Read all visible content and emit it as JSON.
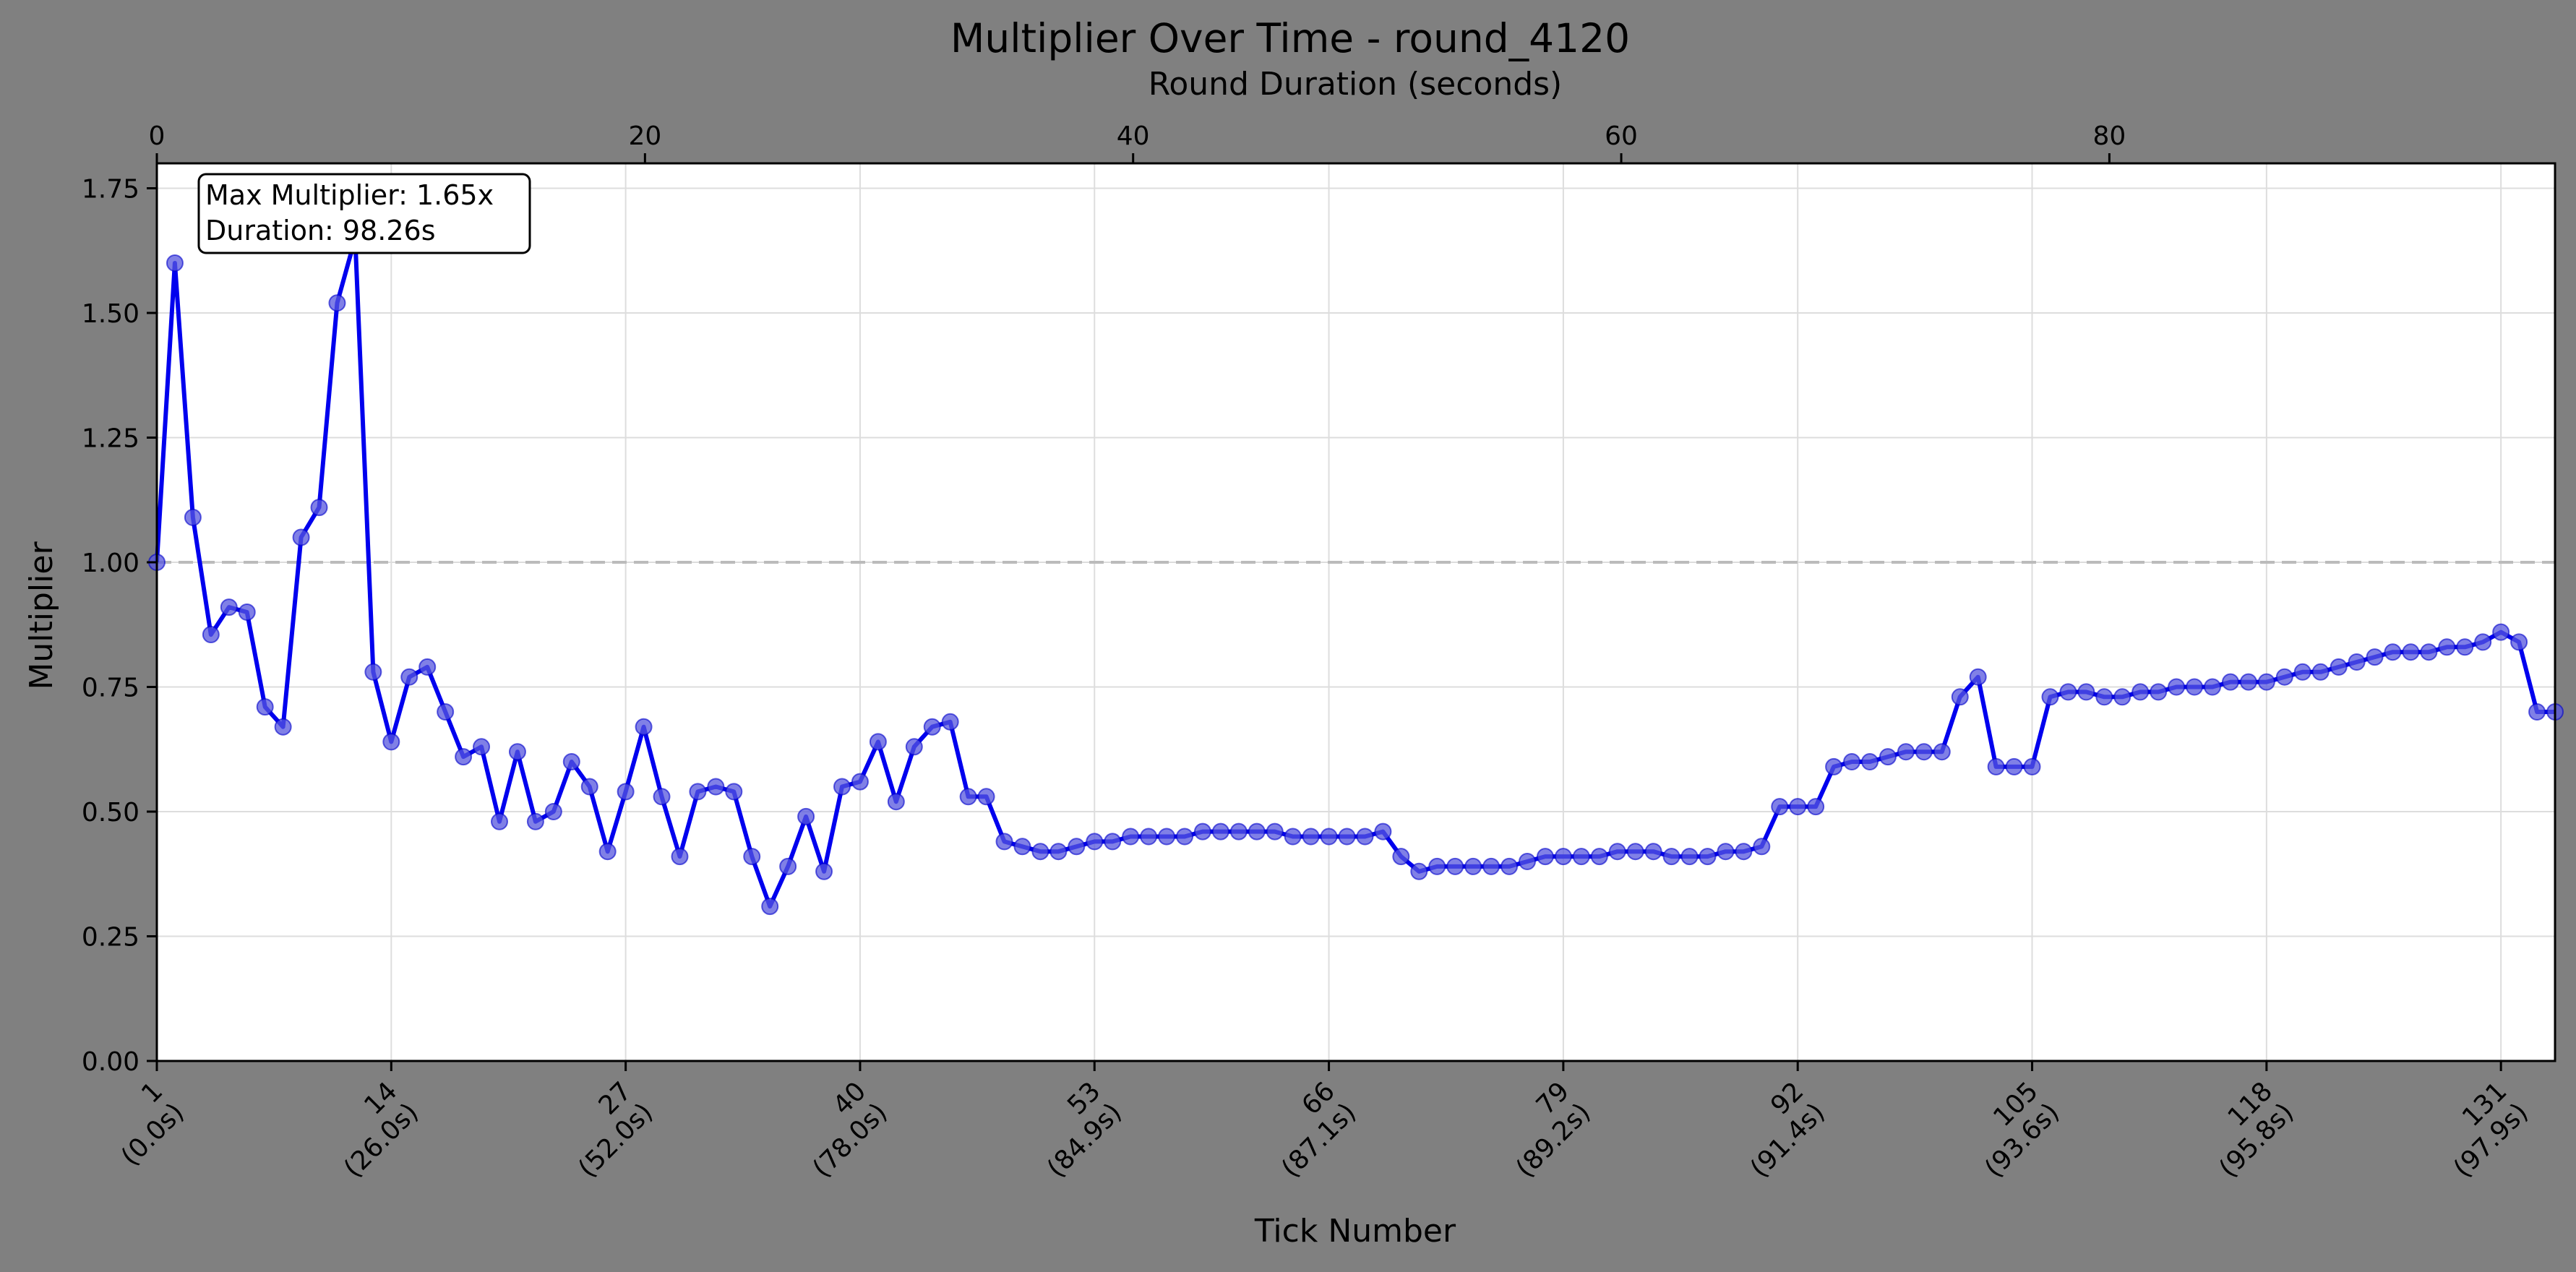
{
  "chart_data": {
    "type": "line",
    "title": "Multiplier Over Time - round_4120",
    "xlabel": "Tick Number",
    "ylabel": "Multiplier",
    "x2label": "Round Duration (seconds)",
    "xlim": [
      1,
      134
    ],
    "ylim": [
      0,
      1.8
    ],
    "x2lim": [
      0,
      98.26
    ],
    "grid": true,
    "x_ticks": [
      {
        "tick": 1,
        "label": "1",
        "sub": "(0.0s)"
      },
      {
        "tick": 14,
        "label": "14",
        "sub": "(26.0s)"
      },
      {
        "tick": 27,
        "label": "27",
        "sub": "(52.0s)"
      },
      {
        "tick": 40,
        "label": "40",
        "sub": "(78.0s)"
      },
      {
        "tick": 53,
        "label": "53",
        "sub": "(84.9s)"
      },
      {
        "tick": 66,
        "label": "66",
        "sub": "(87.1s)"
      },
      {
        "tick": 79,
        "label": "79",
        "sub": "(89.2s)"
      },
      {
        "tick": 92,
        "label": "92",
        "sub": "(91.4s)"
      },
      {
        "tick": 105,
        "label": "105",
        "sub": "(93.6s)"
      },
      {
        "tick": 118,
        "label": "118",
        "sub": "(95.8s)"
      },
      {
        "tick": 131,
        "label": "131",
        "sub": "(97.9s)"
      }
    ],
    "x2_ticks": [
      "0",
      "20",
      "40",
      "60",
      "80"
    ],
    "y_ticks": [
      "0.00",
      "0.25",
      "0.50",
      "0.75",
      "1.00",
      "1.25",
      "1.50",
      "1.75"
    ],
    "reference_line": {
      "y": 1.0,
      "style": "dashed",
      "color": "#bbbbbb"
    },
    "annotation": {
      "line1": "Max Multiplier: 1.65x",
      "line2": "Duration: 98.26s",
      "placement": "top-left"
    },
    "line_color": "#0000ee",
    "marker_color": "#5555dd",
    "series": [
      {
        "x": [
          1,
          2,
          3,
          4,
          5,
          6,
          7,
          8,
          9,
          10,
          11,
          12,
          13,
          14,
          15,
          16,
          17,
          18,
          19,
          20,
          21,
          22,
          23,
          24,
          25,
          26,
          27,
          28,
          29,
          30,
          31,
          32,
          33,
          34,
          35,
          36,
          37,
          38,
          39,
          40,
          41,
          42,
          43,
          44,
          45,
          46,
          47,
          48,
          49,
          50,
          51,
          52,
          53,
          54,
          55,
          56,
          57,
          58,
          59,
          60,
          61,
          62,
          63,
          64,
          65,
          66,
          67,
          68,
          69,
          70,
          71,
          72,
          73,
          74,
          75,
          76,
          77,
          78,
          79,
          80,
          81,
          82,
          83,
          84,
          85,
          86,
          87,
          88,
          89,
          90,
          91,
          92,
          93,
          94,
          95,
          96,
          97,
          98,
          99,
          100,
          101,
          102,
          103,
          104,
          105,
          106,
          107,
          108,
          109,
          110,
          111,
          112,
          113,
          114,
          115,
          116,
          117,
          118,
          119,
          120,
          121,
          122,
          123,
          124,
          125,
          126,
          127,
          128,
          129,
          130,
          131,
          132,
          133,
          134
        ],
        "values": [
          1.0,
          1.6,
          1.09,
          0.855,
          0.91,
          0.9,
          0.71,
          0.67,
          1.05,
          1.11,
          1.52,
          1.65,
          0.78,
          0.64,
          0.77,
          0.79,
          0.7,
          0.61,
          0.63,
          0.48,
          0.62,
          0.48,
          0.5,
          0.6,
          0.55,
          0.42,
          0.54,
          0.67,
          0.53,
          0.41,
          0.54,
          0.55,
          0.54,
          0.41,
          0.31,
          0.39,
          0.49,
          0.38,
          0.55,
          0.56,
          0.64,
          0.52,
          0.63,
          0.67,
          0.68,
          0.53,
          0.53,
          0.44,
          0.43,
          0.42,
          0.42,
          0.43,
          0.44,
          0.44,
          0.45,
          0.45,
          0.45,
          0.45,
          0.46,
          0.46,
          0.46,
          0.46,
          0.46,
          0.45,
          0.45,
          0.45,
          0.45,
          0.45,
          0.46,
          0.41,
          0.38,
          0.39,
          0.39,
          0.39,
          0.39,
          0.39,
          0.4,
          0.41,
          0.41,
          0.41,
          0.41,
          0.42,
          0.42,
          0.42,
          0.41,
          0.41,
          0.41,
          0.42,
          0.42,
          0.43,
          0.51,
          0.51,
          0.51,
          0.59,
          0.6,
          0.6,
          0.61,
          0.62,
          0.62,
          0.62,
          0.73,
          0.77,
          0.59,
          0.59,
          0.59,
          0.73,
          0.74,
          0.74,
          0.73,
          0.73,
          0.74,
          0.74,
          0.75,
          0.75,
          0.75,
          0.76,
          0.76,
          0.76,
          0.77,
          0.78,
          0.78,
          0.79,
          0.8,
          0.81,
          0.82,
          0.82,
          0.82,
          0.83,
          0.83,
          0.84,
          0.86,
          0.84,
          0.7,
          0.7
        ]
      }
    ]
  }
}
